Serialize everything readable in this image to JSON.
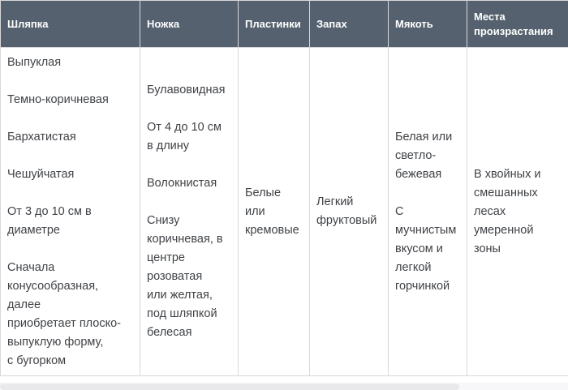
{
  "table": {
    "columns": [
      {
        "header": "Шляпка",
        "cells": [
          "Выпуклая",
          "Темно-коричневая",
          "Бархатистая",
          "Чешуйчатая",
          "От 3 до 10 см в\nдиаметре",
          "Сначала\nконусообразная,\nдалее\nприобретает плоско-\nвыпуклую форму,\nс бугорком"
        ]
      },
      {
        "header": "Ножка",
        "cells": [
          "Булавовидная",
          "От 4 до 10 см\nв длину",
          "Волокнистая",
          "Снизу\nкоричневая, в\nцентре\nрозоватая\nили желтая,\nпод шляпкой\nбелесая"
        ]
      },
      {
        "header": "Пластинки",
        "cells": [
          "Белые\nили\nкремовые"
        ]
      },
      {
        "header": "Запах",
        "cells": [
          "Легкий\nфруктовый"
        ]
      },
      {
        "header": "Мякоть",
        "cells": [
          "Белая или\nсветло-\nбежевая",
          "С\nмучнистым\nвкусом и\nлегкой\nгорчинкой"
        ]
      },
      {
        "header": "Места произрастания",
        "cells": [
          "В хвойных и\nсмешанных\nлесах\nумеренной\nзоны"
        ]
      }
    ],
    "colors": {
      "header_background": "#55616F",
      "header_text": "#FFFFFF",
      "body_text": "#3F4246",
      "border": "#D8D8DB",
      "scrollbar_thumb": "#E9E9EC"
    }
  }
}
